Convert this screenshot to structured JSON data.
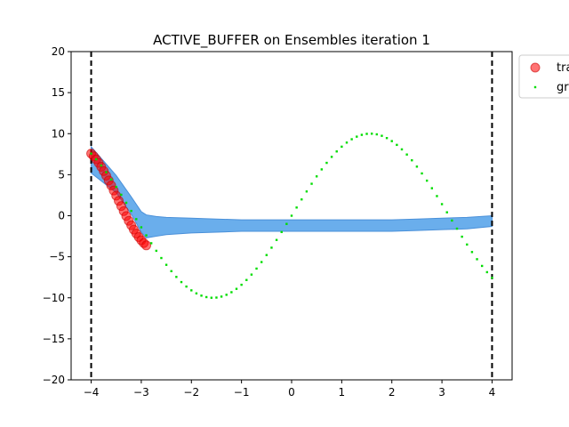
{
  "chart_data": {
    "type": "line",
    "title": "ACTIVE_BUFFER on Ensembles iteration 1",
    "xlabel": "",
    "ylabel": "",
    "xlim": [
      -4.4,
      4.4
    ],
    "ylim": [
      -20,
      20
    ],
    "x_ticks": [
      -4,
      -3,
      -2,
      -1,
      0,
      1,
      2,
      3,
      4
    ],
    "y_ticks": [
      -20,
      -15,
      -10,
      -5,
      0,
      5,
      10,
      15,
      20
    ],
    "x_tick_labels": [
      "−4",
      "−3",
      "−2",
      "−1",
      "0",
      "1",
      "2",
      "3",
      "4"
    ],
    "y_tick_labels": [
      "−20",
      "−15",
      "−10",
      "−5",
      "0",
      "5",
      "10",
      "15",
      "20"
    ],
    "grid": false,
    "legend": {
      "placement": "outside-top-right",
      "entries": [
        "tra",
        "gr"
      ]
    },
    "vlines": [
      -4,
      4
    ],
    "series": [
      {
        "name": "tra",
        "kind": "scatter",
        "color": "#ff0000",
        "edge_color": "#cc0000",
        "x": [
          -4.0,
          -3.95,
          -3.9,
          -3.85,
          -3.8,
          -3.75,
          -3.7,
          -3.65,
          -3.6,
          -3.55,
          -3.5,
          -3.45,
          -3.4,
          -3.35,
          -3.3,
          -3.25,
          -3.2,
          -3.15,
          -3.1,
          -3.05,
          -3.0,
          -2.95,
          -2.9
        ],
        "y": [
          7.57,
          7.25,
          6.87,
          6.44,
          5.96,
          5.44,
          4.88,
          4.3,
          3.69,
          3.07,
          2.44,
          1.81,
          1.18,
          0.56,
          -0.04,
          -0.62,
          -1.17,
          -1.69,
          -2.17,
          -2.6,
          -2.99,
          -3.33,
          -3.61
        ]
      },
      {
        "name": "gr",
        "kind": "dotted",
        "color": "#00dd00",
        "x_start": -4.0,
        "x_end": 4.0,
        "x_step": 0.1,
        "amplitude": 10,
        "function": "amplitude * sin(x)"
      }
    ],
    "band": {
      "color": "#6aaeec",
      "edge_color": "#4a90d9",
      "x": [
        -4.0,
        -3.5,
        -3.2,
        -3.0,
        -2.9,
        -2.7,
        -2.5,
        -2.0,
        -1.5,
        -1.0,
        -0.5,
        0.0,
        0.5,
        1.0,
        1.5,
        2.0,
        2.5,
        3.0,
        3.5,
        4.0
      ],
      "lower": [
        5.2,
        2.8,
        0.2,
        -2.0,
        -2.7,
        -2.5,
        -2.3,
        -2.1,
        -2.0,
        -1.9,
        -1.9,
        -1.9,
        -1.9,
        -1.9,
        -1.9,
        -1.9,
        -1.8,
        -1.7,
        -1.6,
        -1.3
      ],
      "upper": [
        8.4,
        4.9,
        2.3,
        0.5,
        0.1,
        -0.1,
        -0.2,
        -0.3,
        -0.4,
        -0.5,
        -0.5,
        -0.5,
        -0.5,
        -0.5,
        -0.5,
        -0.5,
        -0.4,
        -0.3,
        -0.2,
        0.0
      ]
    }
  }
}
